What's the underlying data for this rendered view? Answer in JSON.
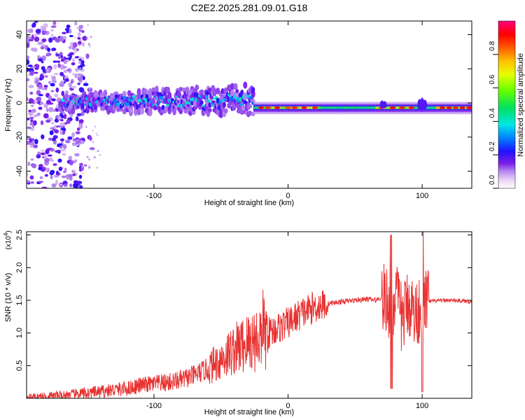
{
  "title": "C2E2.2025.281.09.01.G18",
  "chart_data": [
    {
      "type": "heatmap",
      "xlabel": "Height of straight line (km)",
      "ylabel": "Frequency (Hz)",
      "xlim": [
        -195,
        137
      ],
      "ylim": [
        -50,
        48
      ],
      "xticks": [
        -100,
        0,
        100
      ],
      "yticks": [
        -40,
        -20,
        0,
        20,
        40
      ],
      "colorbar": {
        "label": "Normalized spectral amplitude",
        "range": [
          0,
          1
        ],
        "ticks": [
          0.0,
          0.2,
          0.4,
          0.6,
          0.8
        ]
      },
      "description_regions": [
        {
          "x_range": [
            -195,
            -155
          ],
          "freq_spread": [
            -50,
            48
          ],
          "amplitude": [
            0.0,
            0.25
          ]
        },
        {
          "x_range": [
            -160,
            -25
          ],
          "freq_center": 0,
          "freq_spread": [
            -10,
            12
          ],
          "amplitude": [
            0.1,
            0.4
          ]
        },
        {
          "x_range": [
            -25,
            137
          ],
          "freq_center": -3,
          "freq_spread": [
            -6,
            0
          ],
          "amplitude": [
            0.3,
            0.95
          ]
        }
      ]
    },
    {
      "type": "line",
      "xlabel": "Height of straight line (km)",
      "ylabel": "SNR (10 * v/v)",
      "yscale_label": "(x10",
      "yscale_exp": "4",
      "yscale_close": ")",
      "xlim": [
        -195,
        137
      ],
      "ylim": [
        0,
        2.55
      ],
      "xticks": [
        -100,
        0,
        100
      ],
      "yticks": [
        0.5,
        1.0,
        1.5,
        2.0,
        2.5
      ],
      "color": "#e83232",
      "series": [
        {
          "name": "SNR",
          "x": [
            -195,
            -180,
            -165,
            -150,
            -140,
            -130,
            -120,
            -110,
            -100,
            -90,
            -80,
            -70,
            -60,
            -50,
            -40,
            -30,
            -25,
            -20,
            -15,
            -10,
            -5,
            0,
            10,
            20,
            30,
            40,
            50,
            60,
            65,
            70,
            75,
            77,
            80,
            85,
            90,
            95,
            100,
            103,
            105,
            110,
            120,
            130,
            137
          ],
          "values": [
            0.02,
            0.03,
            0.05,
            0.08,
            0.1,
            0.13,
            0.15,
            0.2,
            0.22,
            0.24,
            0.28,
            0.35,
            0.45,
            0.6,
            0.75,
            0.85,
            0.9,
            0.95,
            1.0,
            1.05,
            1.1,
            1.15,
            1.3,
            1.4,
            1.45,
            1.48,
            1.5,
            1.52,
            1.5,
            1.55,
            1.45,
            1.3,
            1.6,
            1.2,
            1.5,
            1.25,
            1.5,
            1.5,
            1.48,
            1.49,
            1.5,
            1.49,
            1.48
          ]
        }
      ]
    }
  ]
}
